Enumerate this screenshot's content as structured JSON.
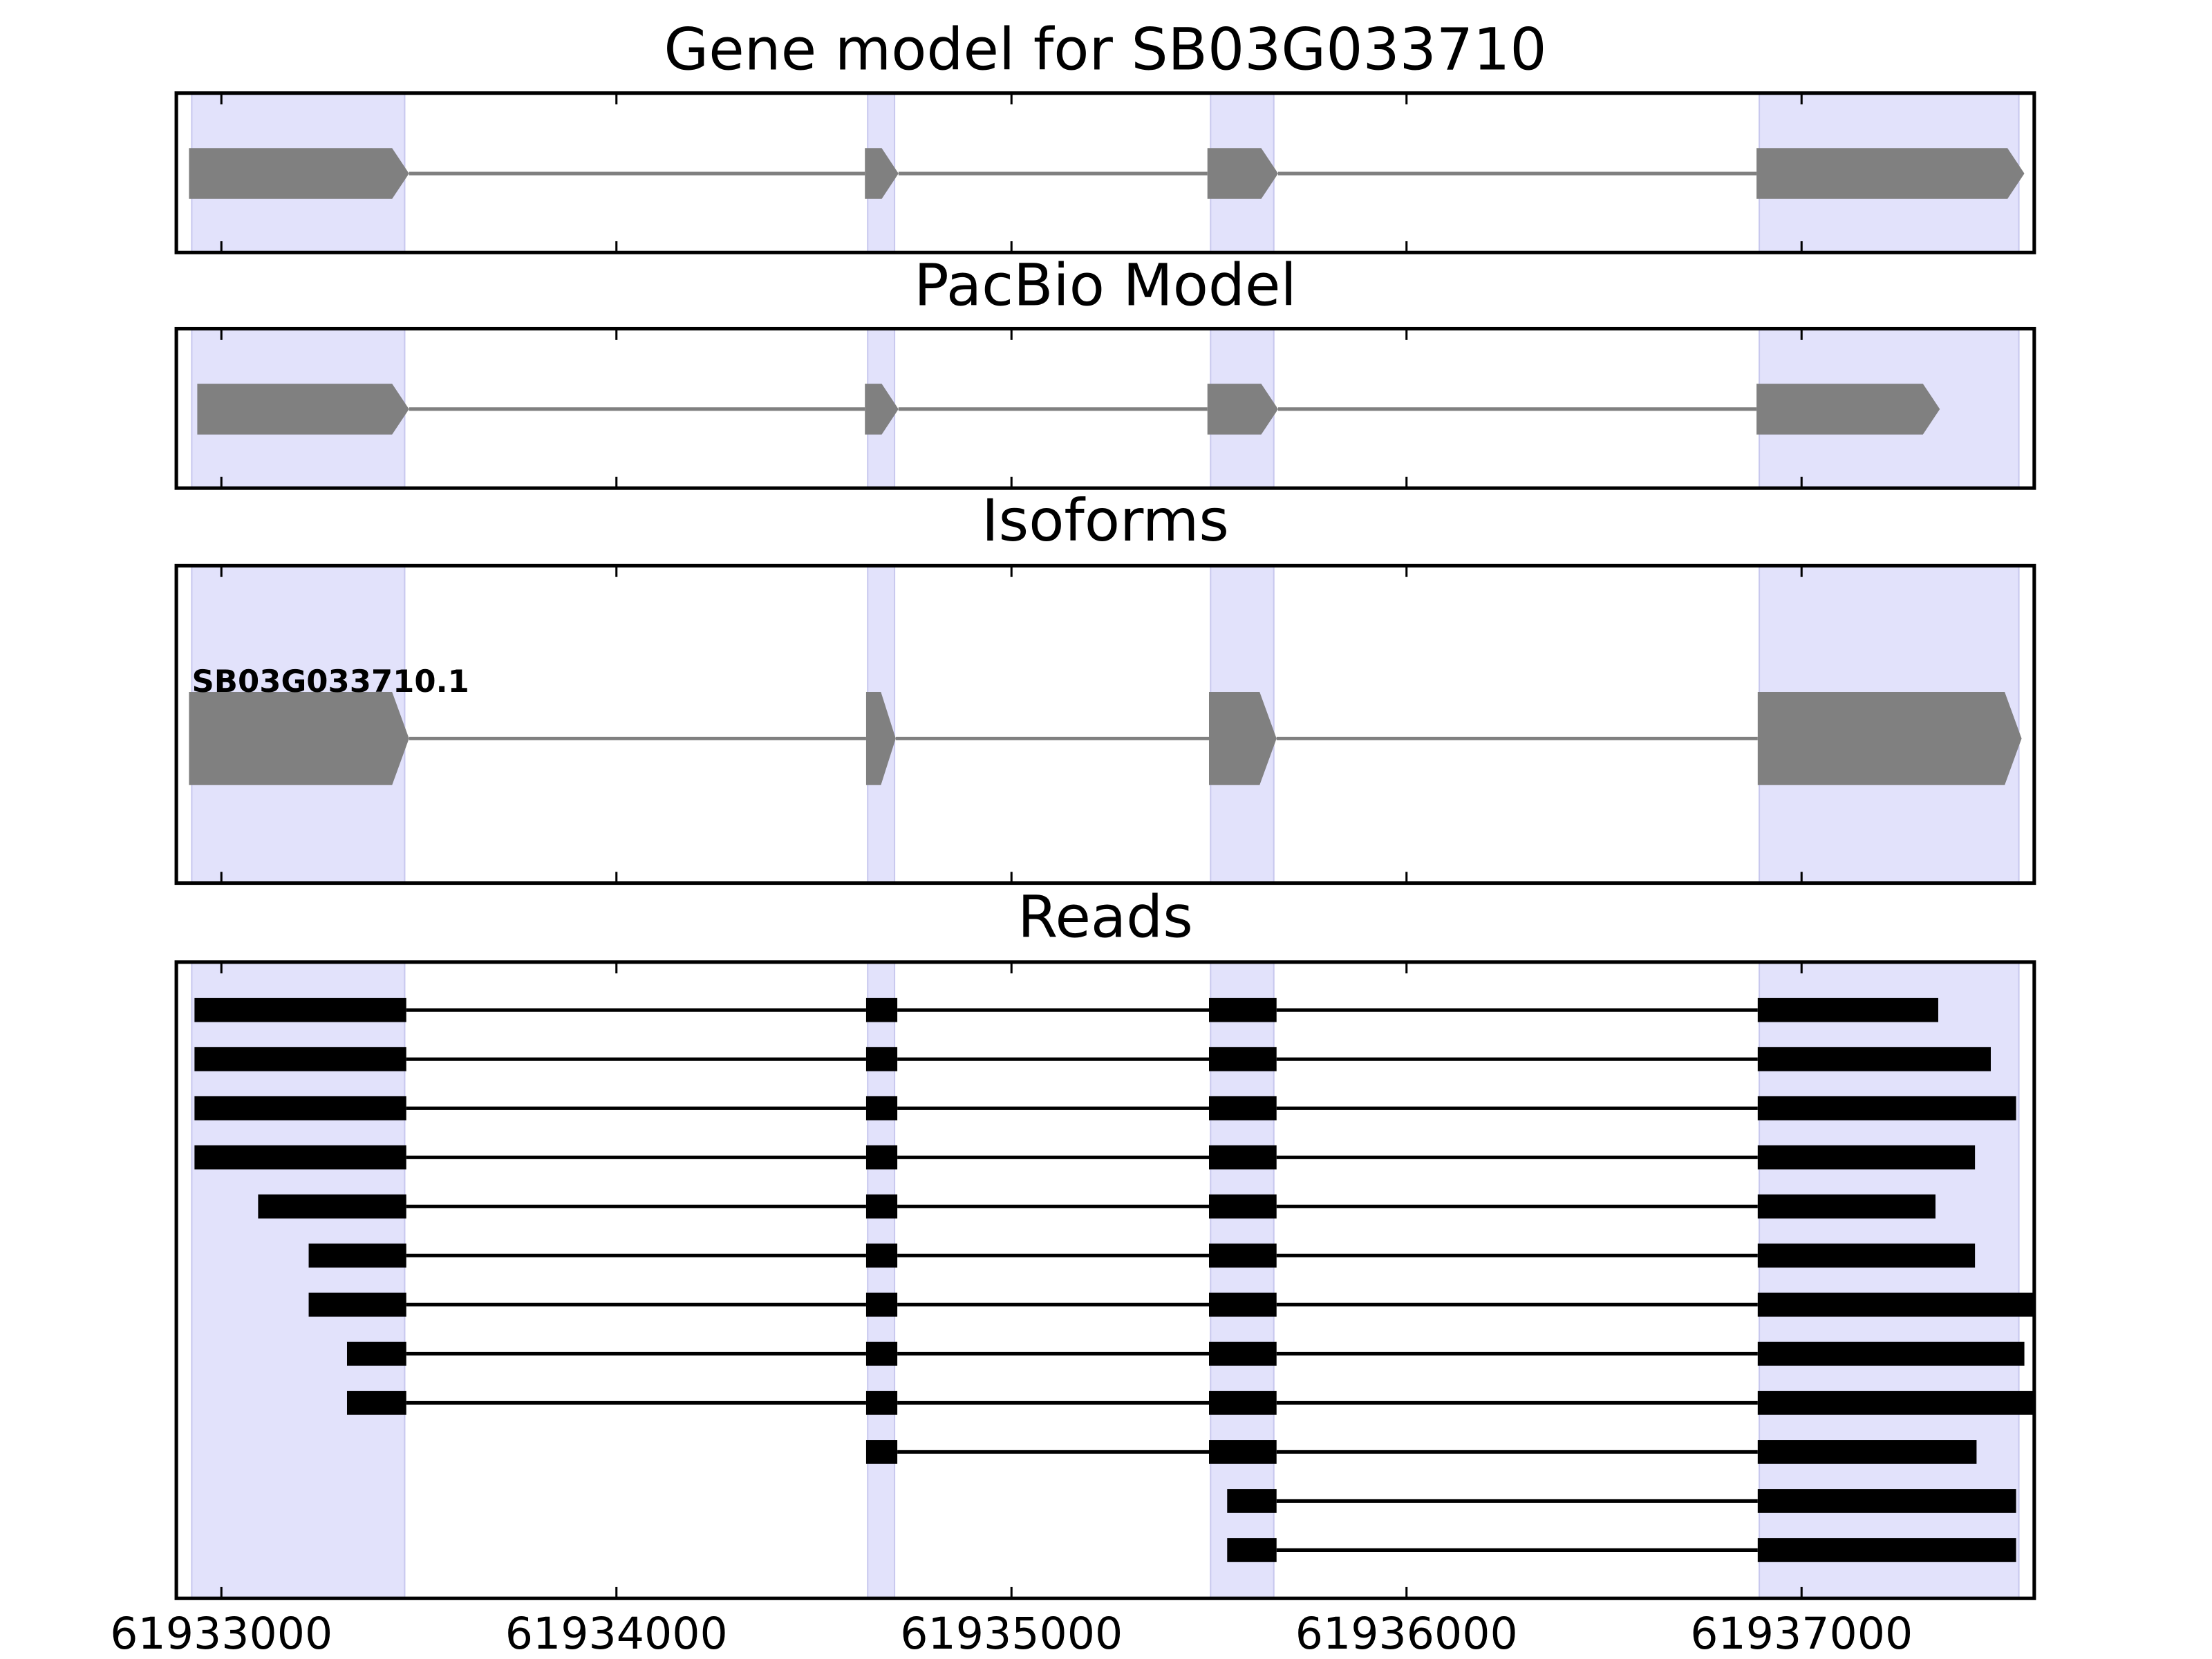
{
  "chart_data": [
    {
      "type": "gene-track",
      "title": "Gene model for SB03G033710",
      "xlim": [
        61932886,
        61937589
      ],
      "color": "#808080",
      "highlight_color": "#e2e2fb",
      "highlights": [
        [
          61932925,
          61933464
        ],
        [
          61934636,
          61934704
        ],
        [
          61935504,
          61935664
        ],
        [
          61936893,
          61937550
        ]
      ],
      "features": [
        {
          "exons": [
            [
              61932918,
              61933475
            ],
            [
              61934629,
              61934714
            ],
            [
              61935496,
              61935675
            ],
            [
              61936886,
              61937564
            ]
          ]
        }
      ]
    },
    {
      "type": "gene-track",
      "title": "PacBio Model",
      "xlim": [
        61932886,
        61937589
      ],
      "color": "#808080",
      "highlight_color": "#e2e2fb",
      "highlights": [
        [
          61932925,
          61933464
        ],
        [
          61934636,
          61934704
        ],
        [
          61935504,
          61935664
        ],
        [
          61936893,
          61937550
        ]
      ],
      "features": [
        {
          "exons": [
            [
              61932939,
              61933475
            ],
            [
              61934629,
              61934714
            ],
            [
              61935496,
              61935675
            ],
            [
              61936886,
              61937350
            ]
          ]
        }
      ]
    },
    {
      "type": "isoform-track",
      "title": "Isoforms",
      "xlim": [
        61932886,
        61937589
      ],
      "color": "#808080",
      "highlight_color": "#e2e2fb",
      "highlights": [
        [
          61932925,
          61933464
        ],
        [
          61934636,
          61934704
        ],
        [
          61935504,
          61935664
        ],
        [
          61936893,
          61937550
        ]
      ],
      "features": [
        {
          "name": "SB03G033710.1",
          "exons": [
            [
              61932918,
              61933475
            ],
            [
              61934632,
              61934707
            ],
            [
              61935500,
              61935671
            ],
            [
              61936889,
              61937557
            ]
          ]
        }
      ]
    },
    {
      "type": "reads",
      "title": "Reads",
      "xlim": [
        61932886,
        61937589
      ],
      "color": "#000000",
      "highlight_color": "#e2e2fb",
      "xticks": [
        61933000,
        61934000,
        61935000,
        61936000,
        61937000
      ],
      "highlights": [
        [
          61932925,
          61933464
        ],
        [
          61934636,
          61934704
        ],
        [
          61935504,
          61935664
        ],
        [
          61936893,
          61937550
        ]
      ],
      "reads": [
        [
          [
            61932932,
            61933468
          ],
          [
            61934632,
            61934711
          ],
          [
            61935500,
            61935671
          ],
          [
            61936889,
            61937346
          ]
        ],
        [
          [
            61932932,
            61933468
          ],
          [
            61934632,
            61934711
          ],
          [
            61935500,
            61935671
          ],
          [
            61936889,
            61937479
          ]
        ],
        [
          [
            61932932,
            61933468
          ],
          [
            61934632,
            61934711
          ],
          [
            61935500,
            61935671
          ],
          [
            61936889,
            61937543
          ]
        ],
        [
          [
            61932932,
            61933468
          ],
          [
            61934632,
            61934711
          ],
          [
            61935500,
            61935671
          ],
          [
            61936889,
            61937439
          ]
        ],
        [
          [
            61933093,
            61933468
          ],
          [
            61934632,
            61934711
          ],
          [
            61935500,
            61935671
          ],
          [
            61936889,
            61937339
          ]
        ],
        [
          [
            61933221,
            61933468
          ],
          [
            61934632,
            61934711
          ],
          [
            61935500,
            61935671
          ],
          [
            61936889,
            61937439
          ]
        ],
        [
          [
            61933221,
            61933468
          ],
          [
            61934632,
            61934711
          ],
          [
            61935500,
            61935671
          ],
          [
            61936889,
            61937589
          ]
        ],
        [
          [
            61933318,
            61933468
          ],
          [
            61934632,
            61934711
          ],
          [
            61935500,
            61935671
          ],
          [
            61936889,
            61937564
          ]
        ],
        [
          [
            61933318,
            61933468
          ],
          [
            61934632,
            61934711
          ],
          [
            61935500,
            61935671
          ],
          [
            61936889,
            61937589
          ]
        ],
        [
          [
            61934632,
            61934711
          ],
          [
            61935500,
            61935671
          ],
          [
            61936889,
            61937443
          ]
        ],
        [
          [
            61935546,
            61935671
          ],
          [
            61936889,
            61937543
          ]
        ],
        [
          [
            61935546,
            61935671
          ],
          [
            61936889,
            61937543
          ]
        ]
      ]
    }
  ]
}
